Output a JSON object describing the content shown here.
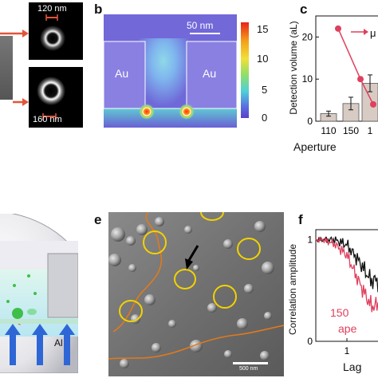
{
  "figure": {
    "panel_labels": {
      "b": "b",
      "c": "c",
      "e": "e",
      "f": "f"
    },
    "panel_a": {
      "label_top": "120 nm",
      "label_bottom": "160 nm",
      "arrow_color": "#e2553a"
    },
    "panel_b": {
      "scale_bar": "50 nm",
      "material_left": "Au",
      "material_right": "Au",
      "colorbar_ticks": [
        "15",
        "10",
        "5",
        "0"
      ]
    },
    "panel_c": {
      "ylabel": "Detection volume (aL)",
      "xlabel_partial": "Aperture",
      "legend_partial": "μ",
      "accent_color": "#e0405e",
      "bar_color": "#d8cbc4"
    },
    "panel_d": {
      "material": "Al"
    },
    "panel_e": {
      "scale_bar": "500 nm",
      "circle_color": "#f2d200",
      "boundary_color": "#e07a1c"
    },
    "panel_f": {
      "ylabel": "Correlation amplitude",
      "xlabel_partial": "Lag",
      "annotation_line1": "150",
      "annotation_line2": "ape",
      "annotation_color": "#e0405e"
    }
  },
  "chart_data": [
    {
      "type": "bar",
      "panel": "c",
      "title": "",
      "xlabel": "Aperture",
      "ylabel": "Detection volume (aL)",
      "categories": [
        "110",
        "150",
        "1"
      ],
      "values": [
        1.8,
        4.2,
        9.0
      ],
      "errors": [
        0.6,
        1.5,
        2.0
      ],
      "line_series": {
        "x": [
          110,
          150,
          190
        ],
        "y": [
          22,
          10,
          4
        ]
      },
      "ylim": [
        0,
        25
      ],
      "yticks": [
        "0",
        "10",
        "20"
      ],
      "grid": false
    },
    {
      "type": "line",
      "panel": "f",
      "xlabel": "Lag",
      "ylabel": "Correlation amplitude",
      "x_tick_labels": [
        "1"
      ],
      "y_tick_labels": [
        "1",
        "0"
      ],
      "series": [
        {
          "color": "#111111",
          "x": [
            0.1,
            0.3,
            1,
            3,
            10
          ],
          "y": [
            1.0,
            1.0,
            0.95,
            0.8,
            0.6
          ]
        },
        {
          "color": "#e0405e",
          "x": [
            0.1,
            0.3,
            1,
            3,
            10
          ],
          "y": [
            1.0,
            0.96,
            0.85,
            0.6,
            0.35
          ]
        }
      ]
    }
  ]
}
